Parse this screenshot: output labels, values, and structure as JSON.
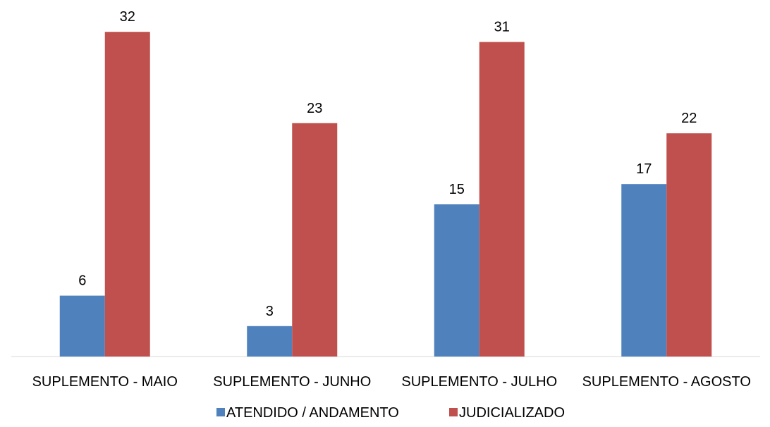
{
  "chart_data": {
    "type": "bar",
    "title": "",
    "xlabel": "",
    "ylabel": "",
    "ylim": [
      0,
      35
    ],
    "grid": false,
    "legend_position": "bottom",
    "categories": [
      "SUPLEMENTO - MAIO",
      "SUPLEMENTO - JUNHO",
      "SUPLEMENTO - JULHO",
      "SUPLEMENTO - AGOSTO"
    ],
    "series": [
      {
        "name": "ATENDIDO / ANDAMENTO",
        "color": "#4F81BD",
        "values": [
          6,
          3,
          15,
          17
        ]
      },
      {
        "name": "JUDICIALIZADO",
        "color": "#C0504D",
        "values": [
          32,
          23,
          31,
          22
        ]
      }
    ]
  }
}
